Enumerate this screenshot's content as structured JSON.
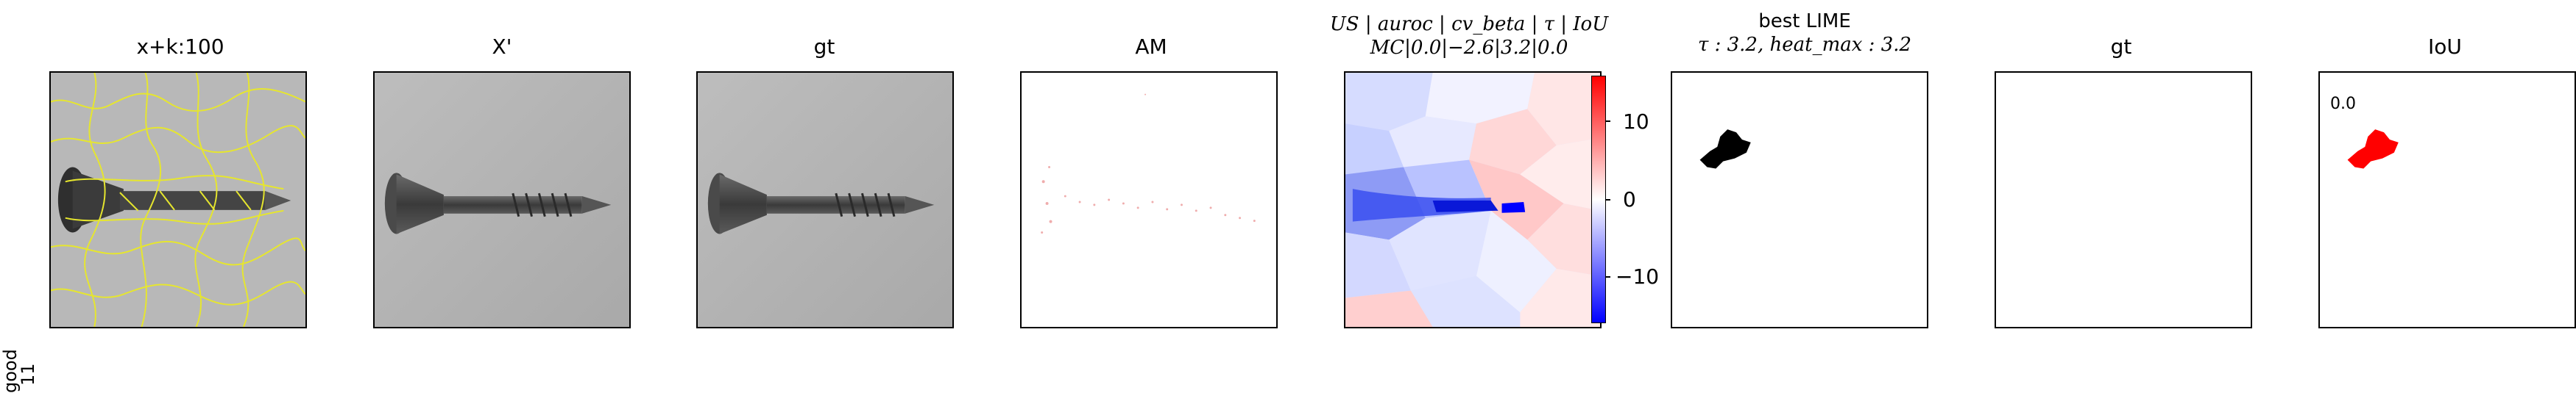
{
  "row_label": {
    "line1": "good",
    "line2": "11"
  },
  "panels": [
    {
      "title": "x+k:100"
    },
    {
      "title": "X'"
    },
    {
      "title": "gt"
    },
    {
      "title": "AM"
    },
    {
      "title_line1": "US | auroc | cv_beta | τ | IoU",
      "title_line2": "MC|0.0|−2.6|3.2|0.0"
    },
    {
      "title_line1": "best LIME",
      "title_line2": "τ : 3.2, heat_max : 3.2"
    },
    {
      "title": "gt"
    },
    {
      "title": "IoU"
    }
  ],
  "colorbar": {
    "ticks": [
      "10",
      "0",
      "−10"
    ],
    "colors": {
      "high": "#ff0000",
      "mid": "#ffffff",
      "low": "#0000ff"
    }
  },
  "iou_value": "0.0",
  "colors": {
    "segment_outline": "#e6e62e",
    "lime_mask": "#000000",
    "iou_mask": "#ff0000"
  }
}
